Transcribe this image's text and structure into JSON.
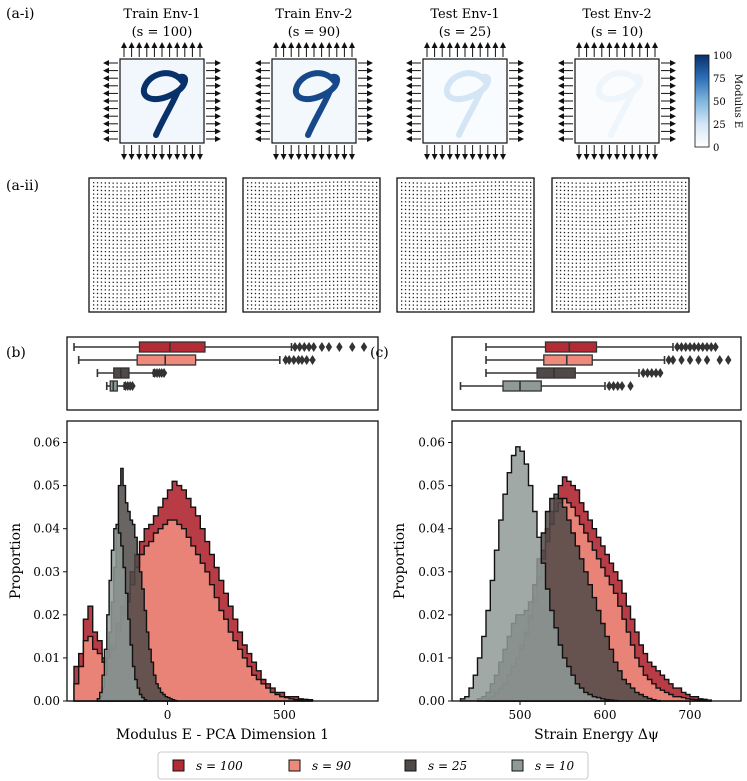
{
  "panel_labels": {
    "a_i": "(a-i)",
    "a_ii": "(a-ii)",
    "b": "(b)",
    "c": "(c)"
  },
  "environments": [
    {
      "name": "Train Env-1",
      "s_label": "(s = 100)",
      "s": 100
    },
    {
      "name": "Train Env-2",
      "s_label": "(s = 90)",
      "s": 90
    },
    {
      "name": "Test Env-1",
      "s_label": "(s = 25)",
      "s": 25
    },
    {
      "name": "Test Env-2",
      "s_label": "(s = 10)",
      "s": 10
    }
  ],
  "colorbar": {
    "label": "Modulus E",
    "ticks": [
      "0",
      "25",
      "50",
      "75",
      "100"
    ],
    "min": 0,
    "max": 100,
    "low_color": "#f7fbff",
    "high_color": "#08306b"
  },
  "legend": [
    {
      "label": "s = 100",
      "color": "#b22b35"
    },
    {
      "label": "s = 90",
      "color": "#ee8a7c"
    },
    {
      "label": "s = 25",
      "color": "#4f4a48"
    },
    {
      "label": "s = 10",
      "color": "#8f9a97"
    }
  ],
  "chart_data": [
    {
      "id": "b",
      "type": "histogram+boxplot",
      "xlabel": "Modulus E - PCA Dimension 1",
      "ylabel": "Proportion",
      "xlim": [
        -430,
        900
      ],
      "ylim": [
        0,
        0.065
      ],
      "xticks": [
        0,
        500
      ],
      "yticks": [
        0.0,
        0.01,
        0.02,
        0.03,
        0.04,
        0.05,
        0.06
      ],
      "series": [
        {
          "name": "s = 100",
          "box": {
            "whisker_low": -400,
            "q1": -120,
            "median": 10,
            "q3": 160,
            "whisker_high": 530
          },
          "outliers": [
            545,
            565,
            585,
            605,
            625,
            660,
            690,
            735,
            790,
            840
          ],
          "hist_x": [
            -400,
            -380,
            -360,
            -340,
            -320,
            -300,
            -280,
            -260,
            -240,
            -220,
            -200,
            -180,
            -160,
            -140,
            -120,
            -100,
            -80,
            -60,
            -40,
            -20,
            0,
            20,
            40,
            60,
            80,
            100,
            120,
            140,
            160,
            180,
            200,
            220,
            240,
            260,
            280,
            300,
            320,
            340,
            360,
            380,
            400,
            420,
            440,
            460,
            480,
            500,
            520,
            540,
            560,
            580,
            600
          ],
          "hist_y": [
            0.008,
            0.011,
            0.019,
            0.022,
            0.016,
            0.014,
            0.01,
            0.012,
            0.013,
            0.018,
            0.022,
            0.025,
            0.03,
            0.034,
            0.037,
            0.04,
            0.041,
            0.043,
            0.045,
            0.047,
            0.049,
            0.051,
            0.05,
            0.049,
            0.047,
            0.045,
            0.043,
            0.04,
            0.037,
            0.034,
            0.031,
            0.028,
            0.025,
            0.022,
            0.019,
            0.016,
            0.013,
            0.011,
            0.009,
            0.007,
            0.005,
            0.004,
            0.003,
            0.002,
            0.002,
            0.001,
            0.001,
            0.001,
            0.0005,
            0.0004,
            0.0003
          ]
        },
        {
          "name": "s = 90",
          "box": {
            "whisker_low": -380,
            "q1": -130,
            "median": -10,
            "q3": 120,
            "whisker_high": 480
          },
          "outliers": [
            505,
            520,
            540,
            560,
            575,
            595,
            620
          ],
          "hist_x": [
            -400,
            -380,
            -360,
            -340,
            -320,
            -300,
            -280,
            -260,
            -240,
            -220,
            -200,
            -180,
            -160,
            -140,
            -120,
            -100,
            -80,
            -60,
            -40,
            -20,
            0,
            20,
            40,
            60,
            80,
            100,
            120,
            140,
            160,
            180,
            200,
            220,
            240,
            260,
            280,
            300,
            320,
            340,
            360,
            380,
            400,
            420,
            440,
            460,
            480,
            500,
            520,
            540,
            560,
            580,
            600
          ],
          "hist_y": [
            0.004,
            0.008,
            0.014,
            0.015,
            0.012,
            0.011,
            0.009,
            0.01,
            0.012,
            0.016,
            0.02,
            0.023,
            0.027,
            0.031,
            0.034,
            0.036,
            0.037,
            0.039,
            0.04,
            0.041,
            0.042,
            0.042,
            0.041,
            0.04,
            0.038,
            0.036,
            0.034,
            0.032,
            0.03,
            0.027,
            0.024,
            0.021,
            0.019,
            0.016,
            0.014,
            0.012,
            0.01,
            0.008,
            0.006,
            0.005,
            0.004,
            0.003,
            0.002,
            0.0015,
            0.001,
            0.0008,
            0.0005,
            0.0003,
            0.0002,
            0.0001,
            0.0001
          ]
        },
        {
          "name": "s = 25",
          "box": {
            "whisker_low": -300,
            "q1": -230,
            "median": -200,
            "q3": -165,
            "whisker_high": -60
          },
          "outliers": [
            -55,
            -45,
            -35,
            -25,
            -15
          ],
          "hist_x": [
            -300,
            -290,
            -280,
            -270,
            -260,
            -250,
            -240,
            -230,
            -220,
            -210,
            -200,
            -190,
            -180,
            -170,
            -160,
            -150,
            -140,
            -130,
            -120,
            -110,
            -100,
            -90,
            -80,
            -70,
            -60,
            -50,
            -40,
            -30,
            -20,
            -10,
            0,
            10,
            20,
            30
          ],
          "hist_y": [
            0.0005,
            0.001,
            0.003,
            0.006,
            0.01,
            0.016,
            0.023,
            0.031,
            0.04,
            0.05,
            0.054,
            0.05,
            0.046,
            0.044,
            0.042,
            0.041,
            0.038,
            0.034,
            0.03,
            0.026,
            0.021,
            0.016,
            0.012,
            0.009,
            0.006,
            0.004,
            0.003,
            0.002,
            0.0015,
            0.001,
            0.0008,
            0.0005,
            0.0003,
            0.0001
          ]
        },
        {
          "name": "s = 10",
          "box": {
            "whisker_low": -260,
            "q1": -245,
            "median": -232,
            "q3": -215,
            "whisker_high": -185
          },
          "outliers": [
            -180,
            -170,
            -160,
            -150
          ],
          "hist_x": [
            -300,
            -290,
            -280,
            -270,
            -260,
            -250,
            -240,
            -230,
            -220,
            -210,
            -200,
            -190,
            -180,
            -170,
            -160,
            -150,
            -140,
            -130,
            -120,
            -110,
            -100
          ],
          "hist_y": [
            0.0005,
            0.002,
            0.006,
            0.012,
            0.02,
            0.028,
            0.035,
            0.04,
            0.041,
            0.039,
            0.036,
            0.031,
            0.025,
            0.019,
            0.013,
            0.008,
            0.005,
            0.003,
            0.0015,
            0.0008,
            0.0003
          ]
        }
      ]
    },
    {
      "id": "c",
      "type": "histogram+boxplot",
      "xlabel": "Strain Energy Δψ",
      "ylabel": "Proportion",
      "xlim": [
        420,
        760
      ],
      "ylim": [
        0,
        0.065
      ],
      "xticks": [
        500,
        600,
        700
      ],
      "yticks": [
        0.0,
        0.01,
        0.02,
        0.03,
        0.04,
        0.05,
        0.06
      ],
      "series": [
        {
          "name": "s = 100",
          "box": {
            "whisker_low": 460,
            "q1": 530,
            "median": 558,
            "q3": 590,
            "whisker_high": 680
          },
          "outliers": [
            685,
            690,
            695,
            700,
            705,
            710,
            715,
            720,
            725,
            730
          ],
          "hist_x": [
            460,
            465,
            470,
            475,
            480,
            485,
            490,
            495,
            500,
            505,
            510,
            515,
            520,
            525,
            530,
            535,
            540,
            545,
            550,
            555,
            560,
            565,
            570,
            575,
            580,
            585,
            590,
            595,
            600,
            605,
            610,
            615,
            620,
            625,
            630,
            635,
            640,
            645,
            650,
            655,
            660,
            665,
            670,
            675,
            680,
            685,
            690,
            695,
            700,
            705,
            710,
            715,
            720
          ],
          "hist_y": [
            0.0005,
            0.001,
            0.002,
            0.003,
            0.004,
            0.006,
            0.008,
            0.01,
            0.013,
            0.016,
            0.02,
            0.024,
            0.029,
            0.035,
            0.04,
            0.044,
            0.047,
            0.05,
            0.052,
            0.051,
            0.05,
            0.049,
            0.046,
            0.044,
            0.042,
            0.04,
            0.038,
            0.036,
            0.034,
            0.032,
            0.03,
            0.028,
            0.025,
            0.022,
            0.019,
            0.016,
            0.013,
            0.011,
            0.009,
            0.008,
            0.007,
            0.006,
            0.005,
            0.004,
            0.003,
            0.003,
            0.002,
            0.0015,
            0.001,
            0.001,
            0.0005,
            0.0004,
            0.0002
          ]
        },
        {
          "name": "s = 90",
          "box": {
            "whisker_low": 460,
            "q1": 528,
            "median": 555,
            "q3": 585,
            "whisker_high": 670
          },
          "outliers": [
            675,
            680,
            690,
            700,
            710,
            720,
            735,
            745
          ],
          "hist_x": [
            460,
            465,
            470,
            475,
            480,
            485,
            490,
            495,
            500,
            505,
            510,
            515,
            520,
            525,
            530,
            535,
            540,
            545,
            550,
            555,
            560,
            565,
            570,
            575,
            580,
            585,
            590,
            595,
            600,
            605,
            610,
            615,
            620,
            625,
            630,
            635,
            640,
            645,
            650,
            655,
            660,
            665,
            670,
            675,
            680,
            685,
            690,
            695,
            700,
            705,
            710,
            715,
            720
          ],
          "hist_y": [
            0.0005,
            0.001,
            0.002,
            0.003,
            0.004,
            0.006,
            0.008,
            0.01,
            0.012,
            0.015,
            0.019,
            0.023,
            0.028,
            0.033,
            0.037,
            0.041,
            0.044,
            0.046,
            0.047,
            0.046,
            0.045,
            0.043,
            0.041,
            0.039,
            0.037,
            0.035,
            0.033,
            0.031,
            0.029,
            0.027,
            0.025,
            0.022,
            0.019,
            0.016,
            0.013,
            0.01,
            0.008,
            0.006,
            0.005,
            0.004,
            0.003,
            0.0025,
            0.002,
            0.0015,
            0.001,
            0.001,
            0.0008,
            0.0005,
            0.0004,
            0.0003,
            0.0002,
            0.0001,
            0.0001
          ]
        },
        {
          "name": "s = 25",
          "box": {
            "whisker_low": 460,
            "q1": 520,
            "median": 540,
            "q3": 565,
            "whisker_high": 640
          },
          "outliers": [
            645,
            650,
            655,
            660,
            665
          ],
          "hist_x": [
            450,
            455,
            460,
            465,
            470,
            475,
            480,
            485,
            490,
            495,
            500,
            505,
            510,
            515,
            520,
            525,
            530,
            535,
            540,
            545,
            550,
            555,
            560,
            565,
            570,
            575,
            580,
            585,
            590,
            595,
            600,
            605,
            610,
            615,
            620,
            625,
            630,
            635,
            640,
            645,
            650,
            655,
            660
          ],
          "hist_y": [
            0.0005,
            0.001,
            0.002,
            0.004,
            0.006,
            0.009,
            0.012,
            0.015,
            0.018,
            0.02,
            0.02,
            0.021,
            0.023,
            0.027,
            0.033,
            0.039,
            0.044,
            0.047,
            0.048,
            0.047,
            0.045,
            0.042,
            0.039,
            0.036,
            0.033,
            0.03,
            0.027,
            0.024,
            0.021,
            0.018,
            0.015,
            0.012,
            0.009,
            0.007,
            0.005,
            0.004,
            0.003,
            0.002,
            0.0015,
            0.001,
            0.0006,
            0.0003,
            0.0001
          ]
        },
        {
          "name": "s = 10",
          "box": {
            "whisker_low": 430,
            "q1": 480,
            "median": 500,
            "q3": 525,
            "whisker_high": 600
          },
          "outliers": [
            605,
            610,
            615,
            620,
            630
          ],
          "hist_x": [
            430,
            435,
            440,
            445,
            450,
            455,
            460,
            465,
            470,
            475,
            480,
            485,
            490,
            495,
            500,
            505,
            510,
            515,
            520,
            525,
            530,
            535,
            540,
            545,
            550,
            555,
            560,
            565,
            570,
            575,
            580,
            585,
            590,
            595,
            600,
            605,
            610
          ],
          "hist_y": [
            0.0005,
            0.001,
            0.003,
            0.006,
            0.01,
            0.015,
            0.021,
            0.028,
            0.035,
            0.042,
            0.048,
            0.053,
            0.057,
            0.059,
            0.058,
            0.055,
            0.05,
            0.044,
            0.038,
            0.032,
            0.026,
            0.021,
            0.017,
            0.013,
            0.01,
            0.008,
            0.006,
            0.004,
            0.003,
            0.002,
            0.0015,
            0.001,
            0.0008,
            0.0005,
            0.0003,
            0.0002,
            0.0001
          ]
        }
      ]
    }
  ]
}
